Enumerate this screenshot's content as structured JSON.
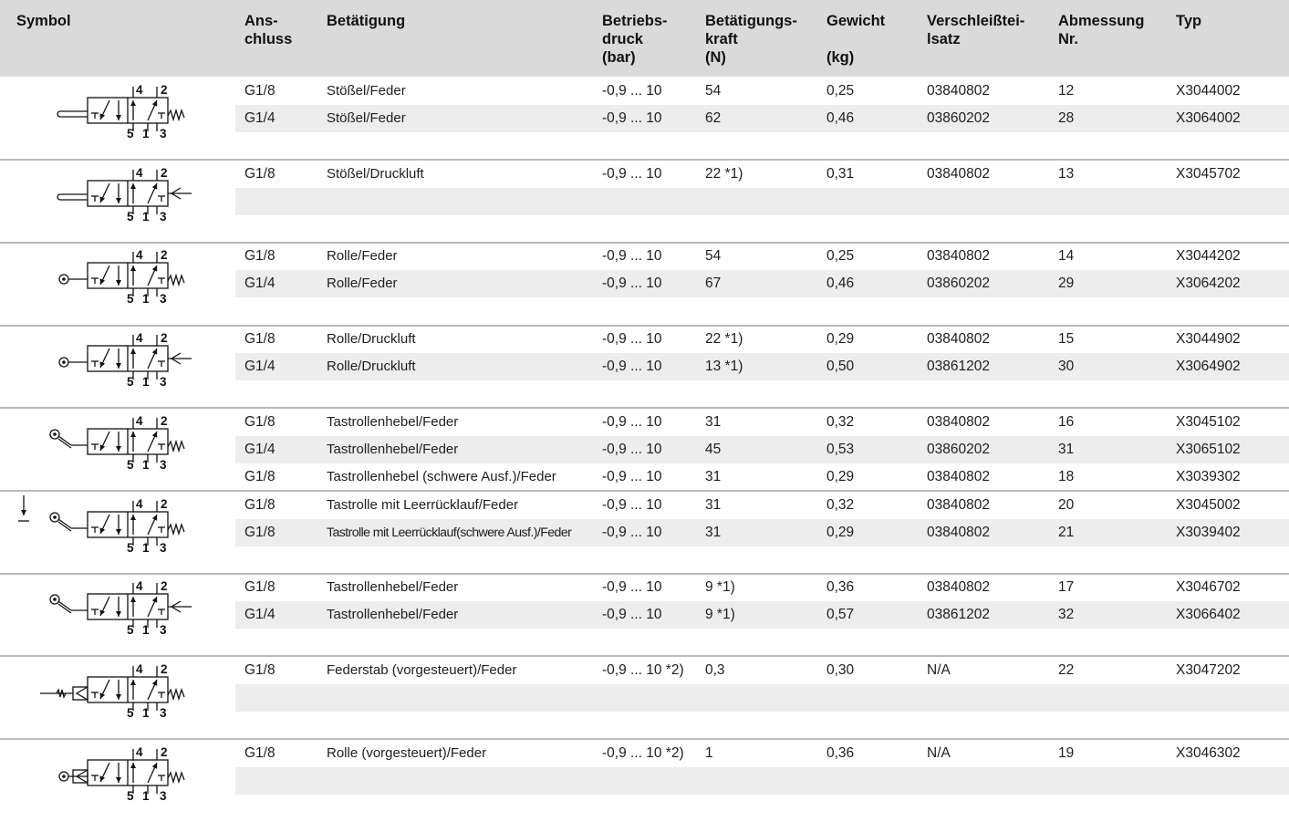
{
  "headers": {
    "symbol": "Symbol",
    "anschluss": "Ans-\nchluss",
    "betaetigung": "Betätigung",
    "betriebsdruck": "Betriebs-\ndruck\n(bar)",
    "kraft": "Betätigungs-\nkraft\n(N)",
    "gewicht": "Gewicht\n\n(kg)",
    "verschleiss": "Verschleißtei-\nlsatz",
    "abmessung": "Abmessung\nNr.",
    "typ": "Typ"
  },
  "symbol_labels": {
    "port4": "4",
    "port2": "2",
    "port5": "5",
    "port1": "1",
    "port3": "3"
  },
  "groups": [
    {
      "symbol": {
        "actuator": "plunger",
        "return": "spring"
      },
      "rows": [
        {
          "anschluss": "G1/8",
          "betaetigung": "Stößel/Feder",
          "druck": "-0,9 ... 10",
          "kraft": "54",
          "gewicht": "0,25",
          "satz": "03840802",
          "abm": "12",
          "typ": "X3044002"
        },
        {
          "anschluss": "G1/4",
          "betaetigung": "Stößel/Feder",
          "druck": "-0,9 ... 10",
          "kraft": "62",
          "gewicht": "0,46",
          "satz": "03860202",
          "abm": "28",
          "typ": "X3064002"
        },
        null
      ]
    },
    {
      "symbol": {
        "actuator": "plunger",
        "return": "pilot"
      },
      "rows": [
        {
          "anschluss": "G1/8",
          "betaetigung": "Stößel/Druckluft",
          "druck": "-0,9 ... 10",
          "kraft": "22 *1)",
          "gewicht": "0,31",
          "satz": "03840802",
          "abm": "13",
          "typ": "X3045702"
        },
        null,
        null
      ]
    },
    {
      "symbol": {
        "actuator": "roller",
        "return": "spring"
      },
      "rows": [
        {
          "anschluss": "G1/8",
          "betaetigung": "Rolle/Feder",
          "druck": "-0,9 ... 10",
          "kraft": "54",
          "gewicht": "0,25",
          "satz": "03840802",
          "abm": "14",
          "typ": "X3044202"
        },
        {
          "anschluss": "G1/4",
          "betaetigung": "Rolle/Feder",
          "druck": "-0,9 ... 10",
          "kraft": "67",
          "gewicht": "0,46",
          "satz": "03860202",
          "abm": "29",
          "typ": "X3064202"
        },
        null
      ]
    },
    {
      "symbol": {
        "actuator": "roller",
        "return": "pilot"
      },
      "rows": [
        {
          "anschluss": "G1/8",
          "betaetigung": "Rolle/Druckluft",
          "druck": "-0,9 ... 10",
          "kraft": "22 *1)",
          "gewicht": "0,29",
          "satz": "03840802",
          "abm": "15",
          "typ": "X3044902"
        },
        {
          "anschluss": "G1/4",
          "betaetigung": "Rolle/Druckluft",
          "druck": "-0,9 ... 10",
          "kraft": "13 *1)",
          "gewicht": "0,50",
          "satz": "03861202",
          "abm": "30",
          "typ": "X3064902"
        },
        null
      ]
    },
    {
      "symbol": {
        "actuator": "lever",
        "return": "spring"
      },
      "rows": [
        {
          "anschluss": "G1/8",
          "betaetigung": "Tastrollenhebel/Feder",
          "druck": "-0,9 ... 10",
          "kraft": "31",
          "gewicht": "0,32",
          "satz": "03840802",
          "abm": "16",
          "typ": "X3045102"
        },
        {
          "anschluss": "G1/4",
          "betaetigung": "Tastrollenhebel/Feder",
          "druck": "-0,9 ... 10",
          "kraft": "45",
          "gewicht": "0,53",
          "satz": "03860202",
          "abm": "31",
          "typ": "X3065102"
        },
        {
          "anschluss": "G1/8",
          "betaetigung": "Tastrollenhebel (schwere Ausf.)/Feder",
          "druck": "-0,9 ... 10",
          "kraft": "31",
          "gewicht": "0,29",
          "satz": "03840802",
          "abm": "18",
          "typ": "X3039302"
        }
      ]
    },
    {
      "symbol": {
        "actuator": "lever-idle",
        "return": "spring"
      },
      "rows": [
        {
          "anschluss": "G1/8",
          "betaetigung": "Tastrolle mit Leerrücklauf/Feder",
          "druck": "-0,9 ... 10",
          "kraft": "31",
          "gewicht": "0,32",
          "satz": "03840802",
          "abm": "20",
          "typ": "X3045002"
        },
        {
          "anschluss": "G1/8",
          "betaetigung": "Tastrolle mit Leerrücklauf(schwere Ausf.)/Feder",
          "druck": "-0,9 ... 10",
          "kraft": "31",
          "gewicht": "0,29",
          "satz": "03840802",
          "abm": "21",
          "typ": "X3039402",
          "narrow": true
        },
        null
      ]
    },
    {
      "symbol": {
        "actuator": "lever",
        "return": "pilot"
      },
      "rows": [
        {
          "anschluss": "G1/8",
          "betaetigung": "Tastrollenhebel/Feder",
          "druck": "-0,9 ... 10",
          "kraft": "9 *1)",
          "gewicht": "0,36",
          "satz": "03840802",
          "abm": "17",
          "typ": "X3046702"
        },
        {
          "anschluss": "G1/4",
          "betaetigung": "Tastrollenhebel/Feder",
          "druck": "-0,9 ... 10",
          "kraft": "9 *1)",
          "gewicht": "0,57",
          "satz": "03861202",
          "abm": "32",
          "typ": "X3066402"
        },
        null
      ]
    },
    {
      "symbol": {
        "actuator": "springrod",
        "return": "spring"
      },
      "rows": [
        {
          "anschluss": "G1/8",
          "betaetigung": "Federstab (vorgesteuert)/Feder",
          "druck": "-0,9 ... 10 *2)",
          "kraft": "0,3",
          "gewicht": "0,30",
          "satz": "N/A",
          "abm": "22",
          "typ": "X3047202"
        },
        null,
        null
      ]
    },
    {
      "symbol": {
        "actuator": "roller-piloted",
        "return": "spring"
      },
      "rows": [
        {
          "anschluss": "G1/8",
          "betaetigung": "Rolle (vorgesteuert)/Feder",
          "druck": "-0,9 ... 10 *2)",
          "kraft": "1",
          "gewicht": "0,36",
          "satz": "N/A",
          "abm": "19",
          "typ": "X3046302"
        },
        null,
        null
      ]
    }
  ]
}
